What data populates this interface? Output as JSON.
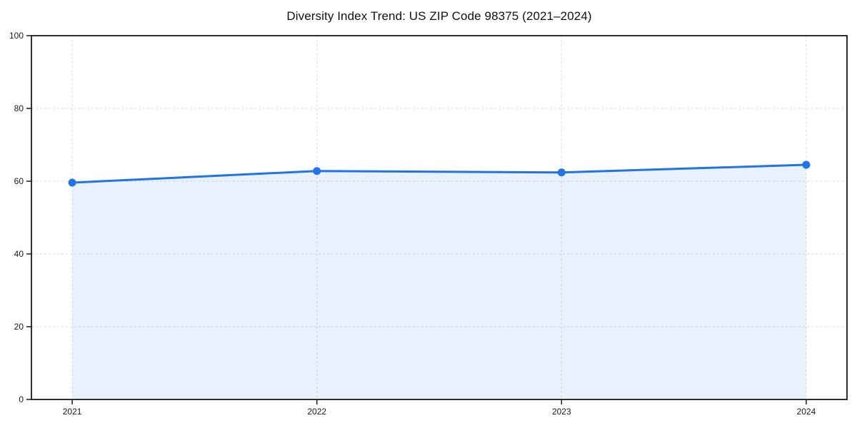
{
  "page": {
    "background": "#ffffff"
  },
  "chart_data": {
    "type": "area",
    "title": "Diversity Index Trend: US ZIP Code 98375 (2021–2024)",
    "x": [
      2021,
      2022,
      2023,
      2024
    ],
    "series": [
      {
        "name": "Diversity Index",
        "values": [
          59.6,
          62.8,
          62.4,
          64.5
        ]
      }
    ],
    "xlabel": "",
    "ylabel": "",
    "ylim": [
      0,
      100
    ],
    "yticks": [
      0,
      20,
      40,
      60,
      80,
      100
    ],
    "xticks": [
      "2021",
      "2022",
      "2023",
      "2024"
    ],
    "grid": "dashed-both-axes",
    "legend": "none",
    "marker": "circle",
    "colors": {
      "line": "#2273e6",
      "marker": "#2273e6",
      "area_fill": "#2273e6",
      "area_opacity": 0.1,
      "gridline": "#dcdcdc",
      "axis": "#1a1a1a",
      "text": "#1a1a1a",
      "background": "#ffffff"
    }
  }
}
